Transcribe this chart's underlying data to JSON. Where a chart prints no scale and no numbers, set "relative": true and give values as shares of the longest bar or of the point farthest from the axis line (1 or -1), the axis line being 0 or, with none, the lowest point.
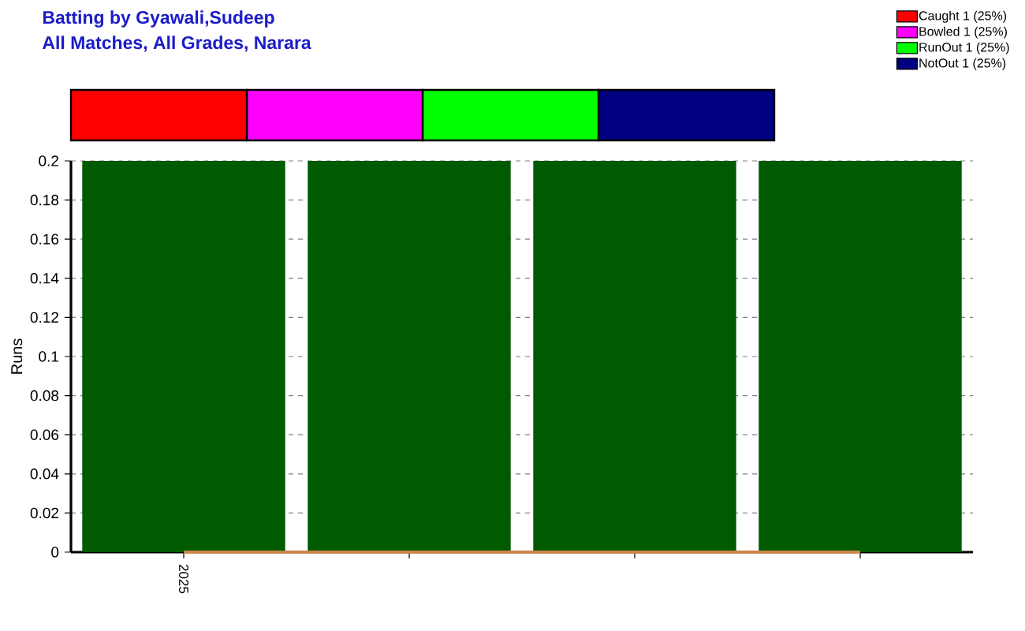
{
  "chart_data": [
    {
      "type": "bar",
      "title": "Batting by Gyawali,Sudeep",
      "subtitle": "All Matches, All Grades, Narara",
      "orientation": "horizontal",
      "stacked": true,
      "relative": true,
      "categories": [
        null
      ],
      "legend": "top right",
      "series": [
        {
          "name": "Caught 1 (25%)",
          "color": "#ff0000",
          "values": [
            0.25
          ]
        },
        {
          "name": "Bowled 1 (25%)",
          "color": "#ff00ff",
          "values": [
            0.25
          ]
        },
        {
          "name": "RunOut 1 (25%)",
          "color": "#00ff00",
          "values": [
            0.25
          ]
        },
        {
          "name": "NotOut 1 (25%)",
          "color": "#000080",
          "values": [
            0.25
          ]
        }
      ]
    },
    {
      "type": "bar",
      "categories": [
        "2025",
        null,
        null,
        null
      ],
      "ylabel": "Runs",
      "ylim": [
        0,
        0.2
      ],
      "yticks": [
        0,
        0.02,
        0.04,
        0.06,
        0.08,
        0.1,
        0.12,
        0.14,
        0.16,
        0.18,
        0.2
      ],
      "grid": "y",
      "marker": "none",
      "line_style": "solid",
      "series": [
        {
          "color": "#005a00",
          "values": [
            0.2,
            0.2,
            0.2,
            0.2
          ]
        },
        {
          "type": "line",
          "color": "#c8864a",
          "values": [
            0,
            0,
            0,
            0
          ]
        }
      ]
    }
  ]
}
